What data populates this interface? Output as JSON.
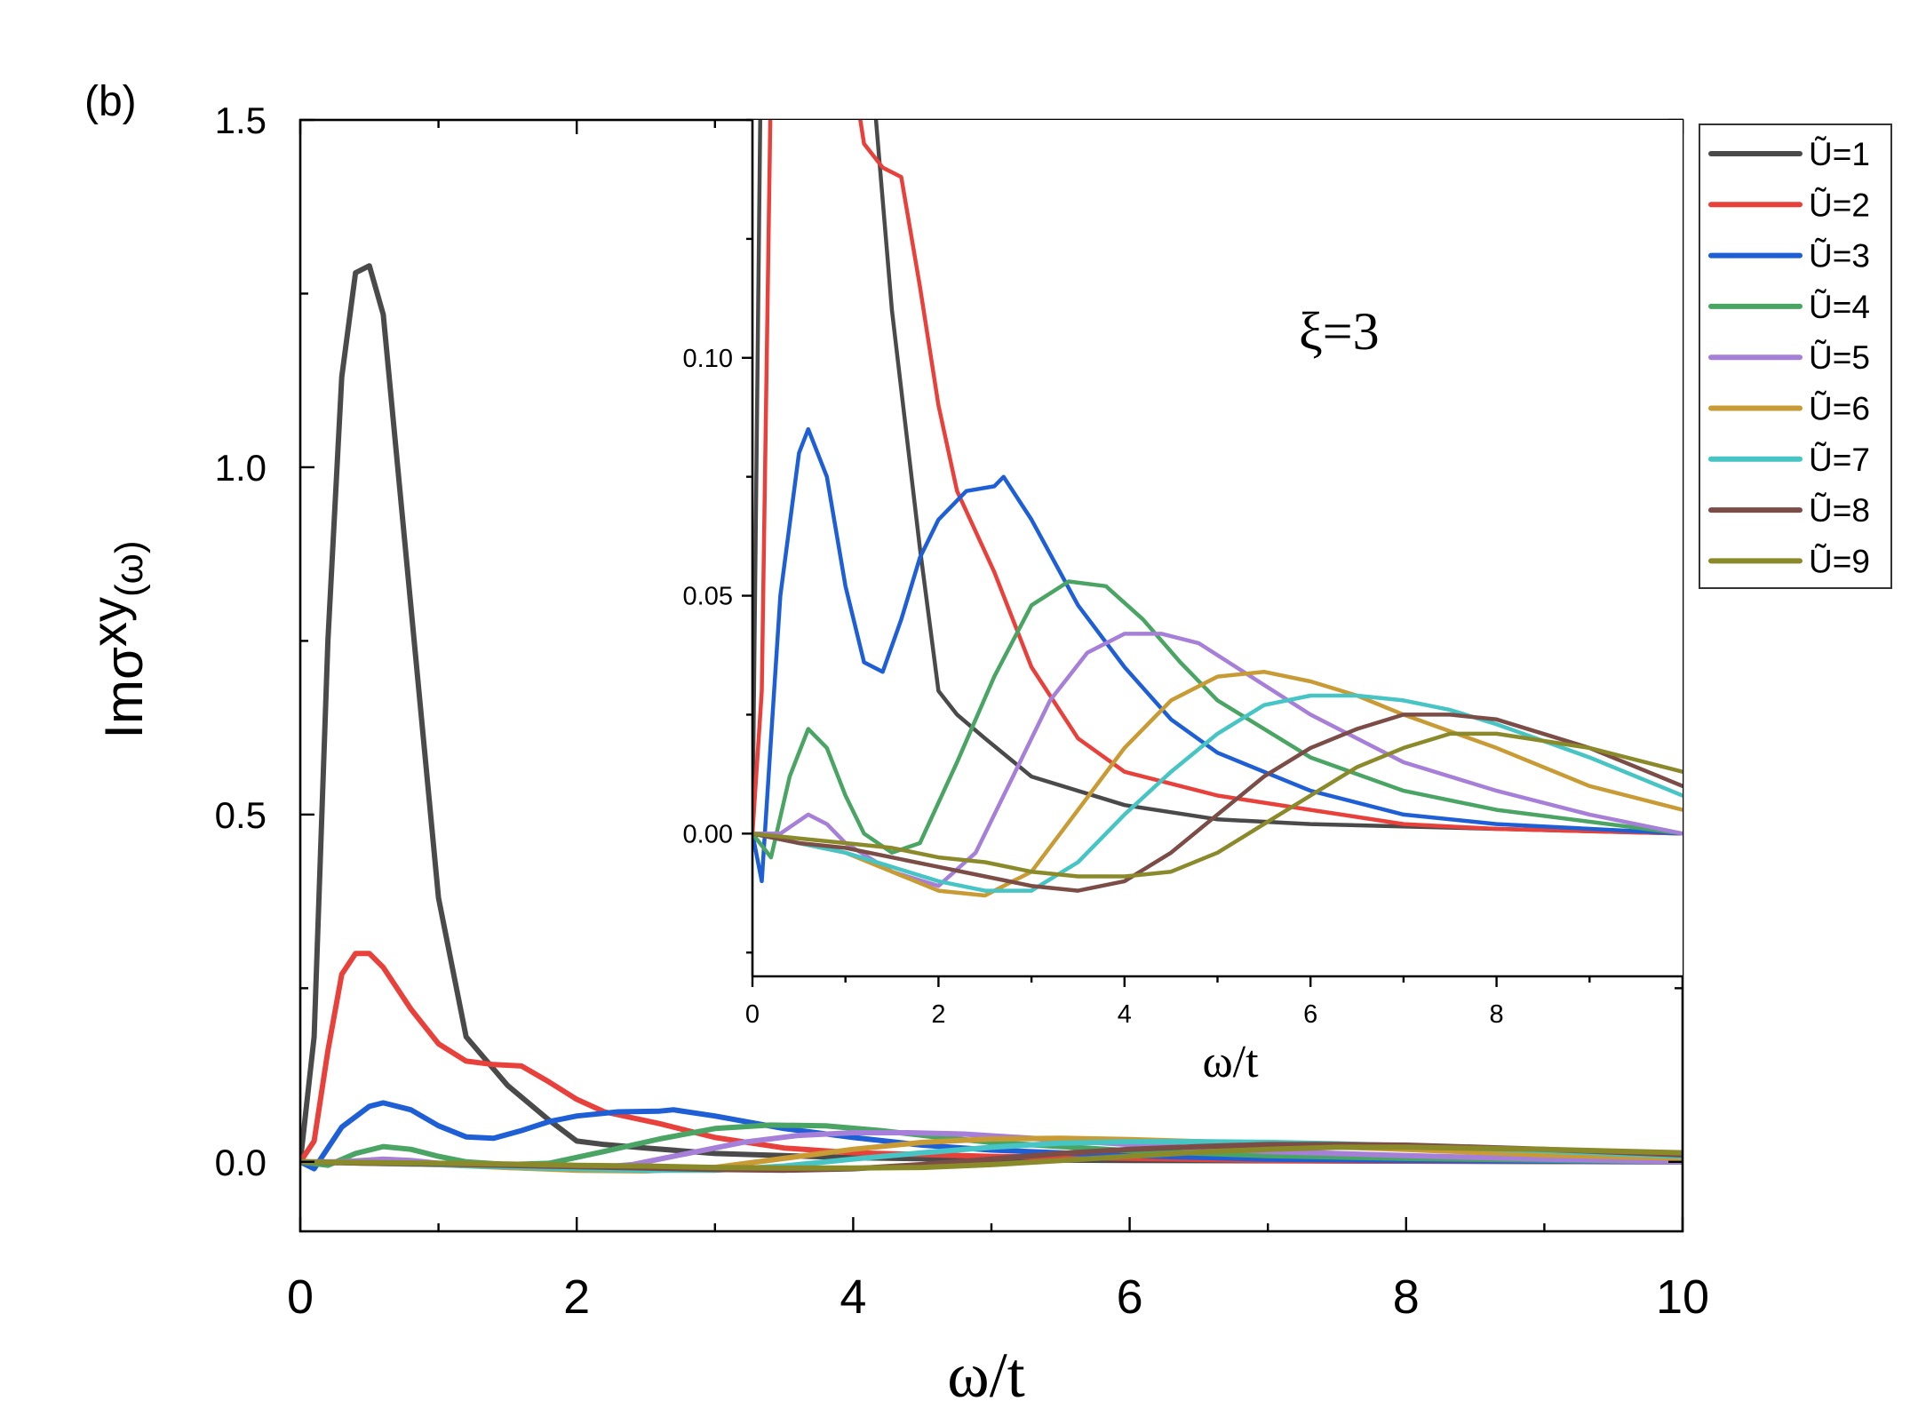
{
  "chart_data": [
    {
      "panel": "main",
      "type": "line",
      "title": "",
      "panel_label": "(b)",
      "xlabel": "ω/t",
      "ylabel": {
        "prefix": "Imσ",
        "superscript": "xy",
        "suffix": "(ω)"
      },
      "xlim": [
        0,
        10
      ],
      "ylim": [
        -0.1,
        1.5
      ],
      "xticks": [
        0,
        2,
        4,
        6,
        8,
        10
      ],
      "xtick_labels": [
        "0",
        "2",
        "4",
        "6",
        "8",
        "10"
      ],
      "yticks": [
        0.0,
        0.5,
        1.0,
        1.5
      ],
      "ytick_labels": [
        "0.0",
        "0.5",
        "1.0",
        "1.5"
      ],
      "legend": {
        "position": "top-right",
        "entries": [
          "Ũ=1",
          "Ũ=2",
          "Ũ=3",
          "Ũ=4",
          "Ũ=5",
          "Ũ=6",
          "Ũ=7",
          "Ũ=8",
          "Ũ=9"
        ]
      },
      "series": [
        {
          "name": "Ũ=1",
          "color": "#4a4a4a",
          "x": [
            0,
            0.1,
            0.2,
            0.3,
            0.4,
            0.5,
            0.6,
            0.8,
            1.0,
            1.2,
            1.5,
            1.8,
            2.0,
            2.2,
            2.5,
            3.0,
            4.0,
            5.0,
            6.0,
            8.0,
            10.0
          ],
          "y": [
            0,
            0.18,
            0.75,
            1.13,
            1.28,
            1.29,
            1.22,
            0.8,
            0.38,
            0.18,
            0.11,
            0.06,
            0.03,
            0.025,
            0.02,
            0.012,
            0.006,
            0.003,
            0.002,
            0.001,
            0.0
          ]
        },
        {
          "name": "Ũ=2",
          "color": "#e8413c",
          "x": [
            0,
            0.1,
            0.2,
            0.3,
            0.4,
            0.5,
            0.6,
            0.8,
            1.0,
            1.2,
            1.4,
            1.6,
            1.8,
            2.0,
            2.2,
            2.6,
            3.0,
            3.5,
            4.0,
            5.0,
            6.0,
            7.0,
            8.0,
            10.0
          ],
          "y": [
            0,
            0.03,
            0.16,
            0.27,
            0.3,
            0.3,
            0.28,
            0.22,
            0.17,
            0.145,
            0.14,
            0.138,
            0.115,
            0.09,
            0.072,
            0.055,
            0.035,
            0.02,
            0.013,
            0.008,
            0.005,
            0.002,
            0.001,
            0.0
          ]
        },
        {
          "name": "Ũ=3",
          "color": "#1f5fd6",
          "x": [
            0,
            0.05,
            0.1,
            0.2,
            0.3,
            0.5,
            0.6,
            0.8,
            1.0,
            1.2,
            1.4,
            1.6,
            1.8,
            2.0,
            2.3,
            2.6,
            2.7,
            3.0,
            3.5,
            4.0,
            4.5,
            5.0,
            6.0,
            7.0,
            8.0,
            10.0
          ],
          "y": [
            0,
            -0.005,
            -0.01,
            0.02,
            0.05,
            0.08,
            0.085,
            0.075,
            0.052,
            0.036,
            0.034,
            0.045,
            0.058,
            0.066,
            0.072,
            0.073,
            0.075,
            0.066,
            0.048,
            0.035,
            0.024,
            0.017,
            0.009,
            0.004,
            0.002,
            0.0
          ]
        },
        {
          "name": "Ũ=4",
          "color": "#4aa564",
          "x": [
            0,
            0.2,
            0.4,
            0.6,
            0.8,
            1.0,
            1.2,
            1.5,
            1.8,
            2.2,
            2.6,
            3.0,
            3.4,
            3.8,
            4.2,
            4.6,
            5.0,
            6.0,
            7.0,
            8.0,
            10.0
          ],
          "y": [
            0,
            -0.005,
            0.012,
            0.022,
            0.018,
            0.008,
            0.0,
            -0.004,
            -0.002,
            0.015,
            0.033,
            0.048,
            0.053,
            0.052,
            0.045,
            0.036,
            0.028,
            0.016,
            0.009,
            0.005,
            0.0
          ]
        },
        {
          "name": "Ũ=5",
          "color": "#a67fd8",
          "x": [
            0,
            0.3,
            0.6,
            0.8,
            1.0,
            1.5,
            2.0,
            2.4,
            2.8,
            3.2,
            3.6,
            4.0,
            4.4,
            4.8,
            5.2,
            6.0,
            7.0,
            8.0,
            9.0,
            10.0
          ],
          "y": [
            0,
            0.0,
            0.004,
            0.002,
            -0.002,
            -0.008,
            -0.011,
            -0.004,
            0.012,
            0.028,
            0.038,
            0.042,
            0.042,
            0.04,
            0.035,
            0.025,
            0.015,
            0.009,
            0.004,
            0.0
          ]
        },
        {
          "name": "Ũ=6",
          "color": "#c99b35",
          "x": [
            0,
            0.5,
            1.0,
            1.5,
            2.0,
            2.5,
            3.0,
            3.5,
            4.0,
            4.5,
            5.0,
            5.5,
            6.0,
            6.5,
            7.0,
            8.0,
            9.0,
            10.0
          ],
          "y": [
            0,
            -0.002,
            -0.004,
            -0.008,
            -0.012,
            -0.013,
            -0.008,
            0.005,
            0.018,
            0.028,
            0.033,
            0.034,
            0.032,
            0.029,
            0.025,
            0.018,
            0.01,
            0.005
          ]
        },
        {
          "name": "Ũ=7",
          "color": "#47c4c4",
          "x": [
            0,
            0.5,
            1.0,
            1.5,
            2.0,
            2.5,
            3.0,
            3.5,
            4.0,
            4.5,
            5.0,
            5.5,
            6.0,
            6.5,
            7.0,
            7.5,
            8.0,
            9.0,
            10.0
          ],
          "y": [
            0,
            -0.002,
            -0.004,
            -0.007,
            -0.01,
            -0.012,
            -0.012,
            -0.006,
            0.004,
            0.013,
            0.021,
            0.027,
            0.029,
            0.029,
            0.028,
            0.026,
            0.023,
            0.016,
            0.008
          ]
        },
        {
          "name": "Ũ=8",
          "color": "#7b4d46",
          "x": [
            0,
            0.5,
            1.0,
            1.5,
            2.0,
            2.5,
            3.0,
            3.5,
            4.0,
            4.5,
            5.0,
            5.5,
            6.0,
            6.5,
            7.0,
            7.5,
            8.0,
            9.0,
            10.0
          ],
          "y": [
            0,
            -0.002,
            -0.003,
            -0.005,
            -0.007,
            -0.009,
            -0.011,
            -0.012,
            -0.01,
            -0.004,
            0.004,
            0.012,
            0.018,
            0.022,
            0.025,
            0.025,
            0.024,
            0.018,
            0.01
          ]
        },
        {
          "name": "Ũ=9",
          "color": "#8b8a2a",
          "x": [
            0,
            0.5,
            1.0,
            1.5,
            2.0,
            2.5,
            3.0,
            3.5,
            4.0,
            4.5,
            5.0,
            5.5,
            6.0,
            6.5,
            7.0,
            7.5,
            8.0,
            9.0,
            10.0
          ],
          "y": [
            0,
            -0.001,
            -0.002,
            -0.003,
            -0.005,
            -0.006,
            -0.008,
            -0.009,
            -0.009,
            -0.008,
            -0.004,
            0.002,
            0.008,
            0.014,
            0.018,
            0.021,
            0.021,
            0.018,
            0.013
          ]
        }
      ]
    },
    {
      "panel": "inset",
      "type": "line",
      "title": "",
      "xlabel": "ω/t",
      "annotation": "ξ=3",
      "xlim": [
        0,
        10
      ],
      "ylim": [
        -0.03,
        0.15
      ],
      "xticks": [
        0,
        2,
        4,
        6,
        8
      ],
      "xtick_labels": [
        "0",
        "2",
        "4",
        "6",
        "8"
      ],
      "yticks": [
        0.0,
        0.05,
        0.1
      ],
      "ytick_labels": [
        "0.00",
        "0.05",
        "0.10"
      ],
      "series_ref": "same data as main panel"
    }
  ]
}
